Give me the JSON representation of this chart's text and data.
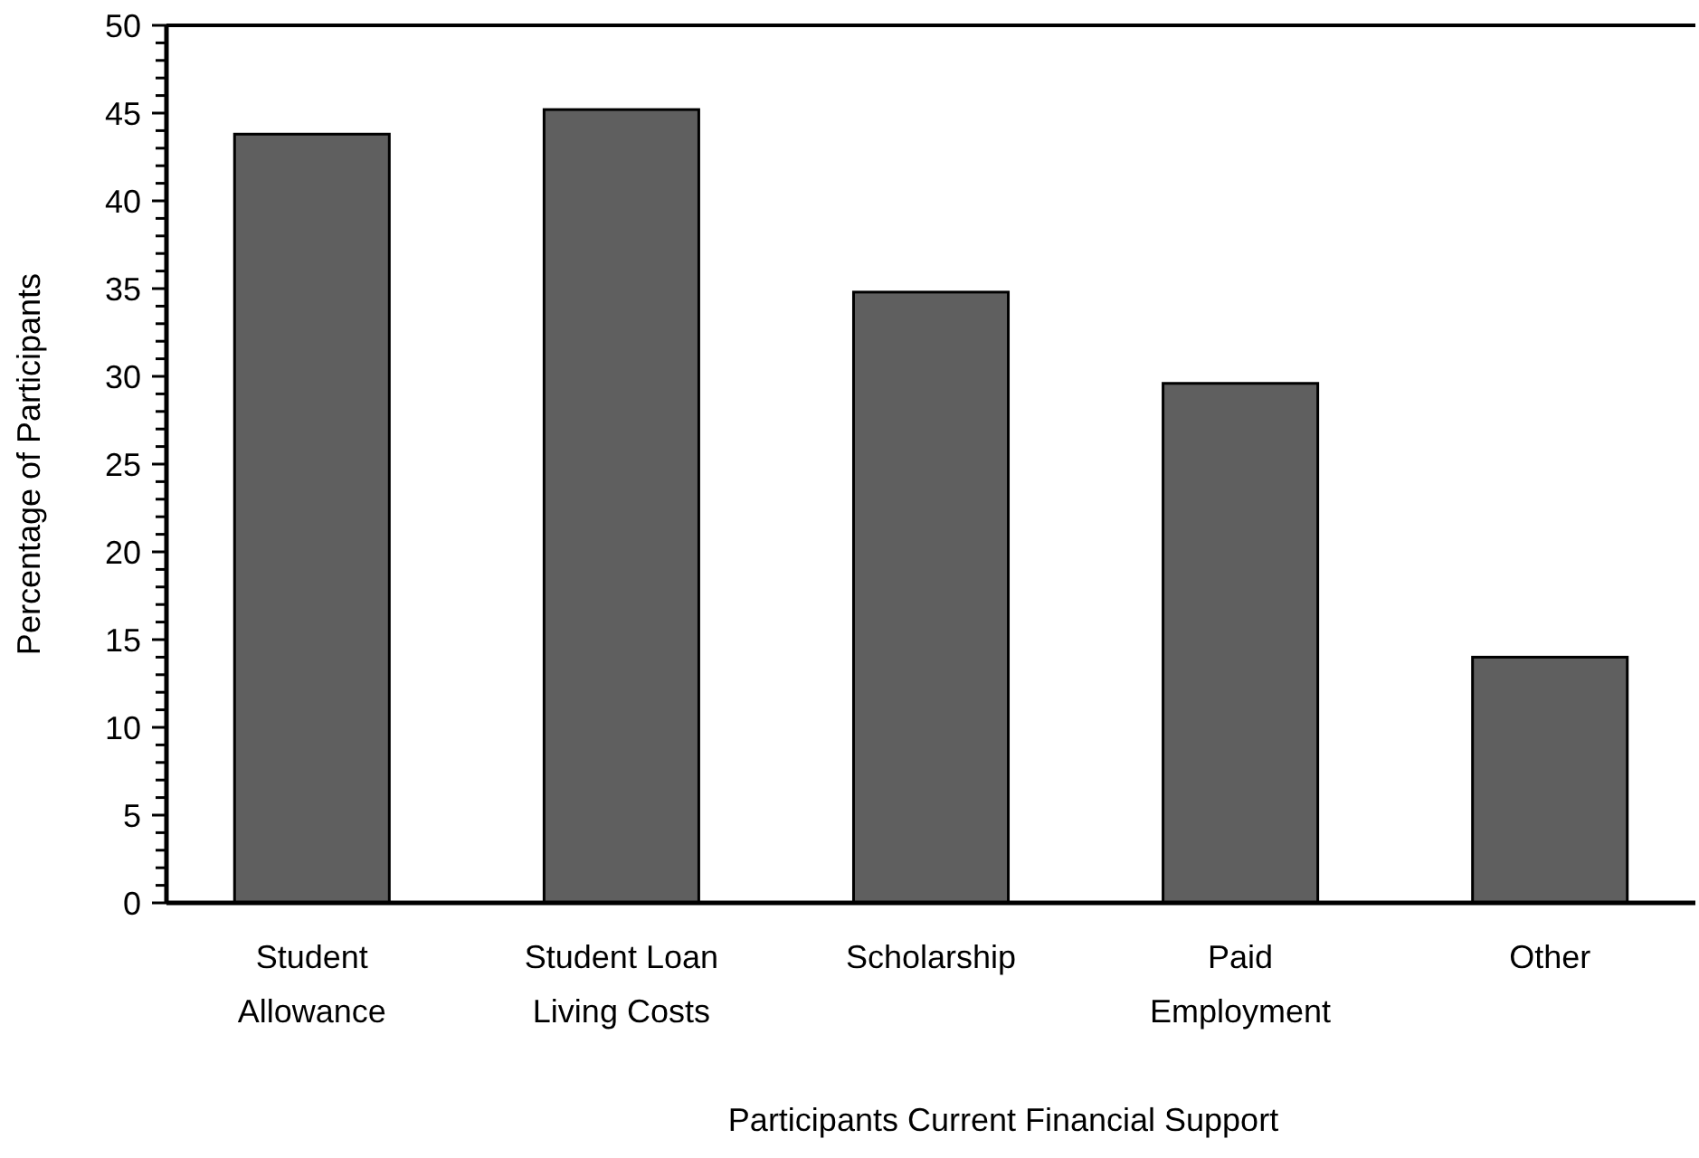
{
  "chart_data": {
    "type": "bar",
    "xlabel": "Participants Current Financial Support",
    "ylabel": "Percentage of Participants",
    "categories": [
      "Student Allowance",
      "Student Loan Living Costs",
      "Scholarship",
      "Paid Employment",
      "Other"
    ],
    "values": [
      43.8,
      45.2,
      34.8,
      29.6,
      14.0
    ],
    "color": "#5f5f5f",
    "ylim": [
      0,
      50
    ],
    "yticks": [
      0,
      {
        "value": 1,
        "label": null
      },
      {
        "value": 2,
        "label": null
      },
      {
        "value": 3,
        "label": null
      },
      {
        "value": 4,
        "label": null
      },
      5,
      {
        "value": 6,
        "label": null
      },
      {
        "value": 7,
        "label": null
      },
      {
        "value": 8,
        "label": null
      },
      {
        "value": 9,
        "label": null
      },
      10,
      {
        "value": 11,
        "label": null
      },
      {
        "value": 12,
        "label": null
      },
      {
        "value": 13,
        "label": null
      },
      {
        "value": 14,
        "label": null
      },
      15,
      {
        "value": 16,
        "label": null
      },
      {
        "value": 17,
        "label": null
      },
      {
        "value": 18,
        "label": null
      },
      {
        "value": 19,
        "label": null
      },
      20,
      {
        "value": 21,
        "label": null
      },
      {
        "value": 22,
        "label": null
      },
      {
        "value": 23,
        "label": null
      },
      {
        "value": 24,
        "label": null
      },
      25,
      {
        "value": 26,
        "label": null
      },
      {
        "value": 27,
        "label": null
      },
      {
        "value": 28,
        "label": null
      },
      {
        "value": 29,
        "label": null
      },
      30,
      {
        "value": 31,
        "label": null
      },
      {
        "value": 32,
        "label": null
      },
      {
        "value": 33,
        "label": null
      },
      {
        "value": 34,
        "label": null
      },
      35,
      {
        "value": 36,
        "label": null
      },
      {
        "value": 37,
        "label": null
      },
      {
        "value": 38,
        "label": null
      },
      {
        "value": 39,
        "label": null
      },
      40,
      {
        "value": 41,
        "label": null
      },
      {
        "value": 42,
        "label": null
      },
      {
        "value": 43,
        "label": null
      },
      {
        "value": 44,
        "label": null
      },
      45,
      {
        "value": 46,
        "label": null
      },
      {
        "value": 47,
        "label": null
      },
      {
        "value": 48,
        "label": null
      },
      {
        "value": 49,
        "label": null
      },
      50
    ],
    "grid": false
  }
}
